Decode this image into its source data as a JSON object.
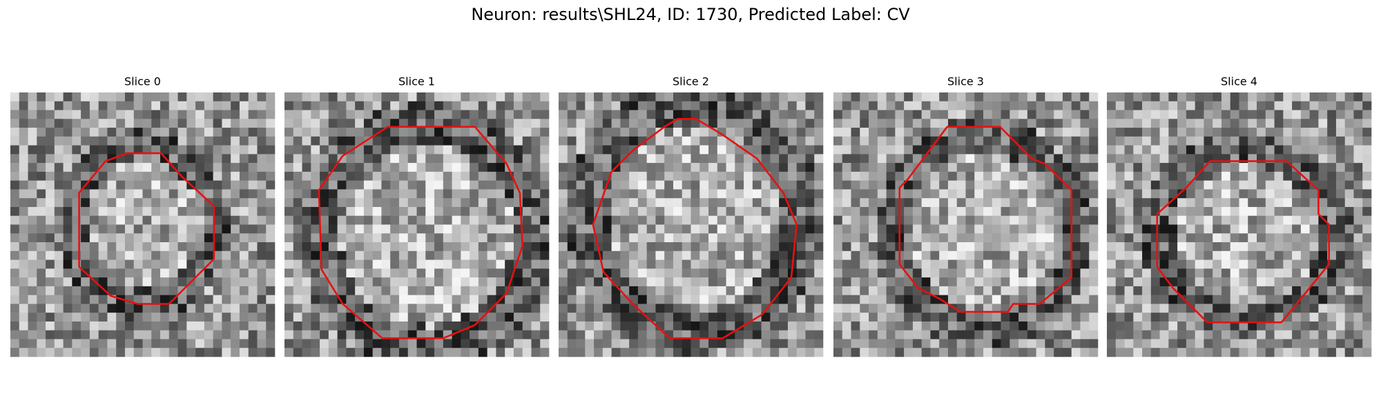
{
  "title": "Neuron: results\\SHL24, ID: 1730, Predicted Label: CV",
  "panels": [
    {
      "title": "Slice 0"
    },
    {
      "title": "Slice 1"
    },
    {
      "title": "Slice 2"
    },
    {
      "title": "Slice 3"
    },
    {
      "title": "Slice 4"
    }
  ]
}
